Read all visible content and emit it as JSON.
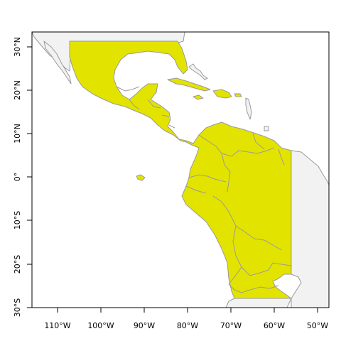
{
  "map": {
    "x_ticks": [
      "110°W",
      "100°W",
      "90°W",
      "80°W",
      "70°W",
      "60°W",
      "50°W"
    ],
    "y_ticks": [
      "30°S",
      "20°S",
      "10°S",
      "0°",
      "10°N",
      "20°N",
      "30°N"
    ],
    "colors": {
      "highlight": "#e3e300",
      "land": "#f2f2f2",
      "border": "#9a9a9a",
      "frame": "#000000"
    }
  }
}
